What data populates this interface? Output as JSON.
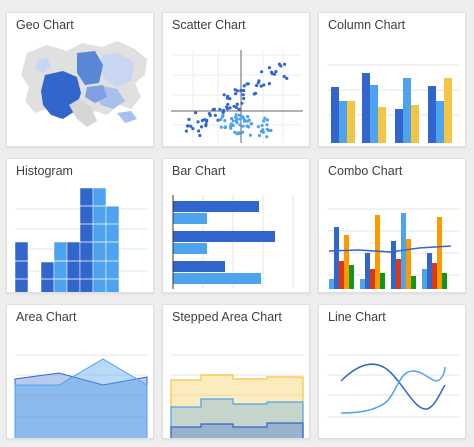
{
  "gallery": {
    "cards": [
      {
        "title": "Geo Chart",
        "icon": "geo-chart-thumbnail"
      },
      {
        "title": "Scatter Chart",
        "icon": "scatter-chart-thumbnail"
      },
      {
        "title": "Column Chart",
        "icon": "column-chart-thumbnail"
      },
      {
        "title": "Histogram",
        "icon": "histogram-thumbnail"
      },
      {
        "title": "Bar Chart",
        "icon": "bar-chart-thumbnail"
      },
      {
        "title": "Combo Chart",
        "icon": "combo-chart-thumbnail"
      },
      {
        "title": "Area Chart",
        "icon": "area-chart-thumbnail"
      },
      {
        "title": "Stepped Area Chart",
        "icon": "stepped-area-chart-thumbnail"
      },
      {
        "title": "Line Chart",
        "icon": "line-chart-thumbnail"
      }
    ]
  },
  "colors": {
    "dark_blue": "#3366cc",
    "light_blue": "#4da3ee",
    "yellow": "#f4c542",
    "red": "#dc3912",
    "orange": "#ff9900",
    "green": "#109618",
    "grid": "#e6e6e6",
    "background": "#eeeeee",
    "card": "#ffffff"
  }
}
